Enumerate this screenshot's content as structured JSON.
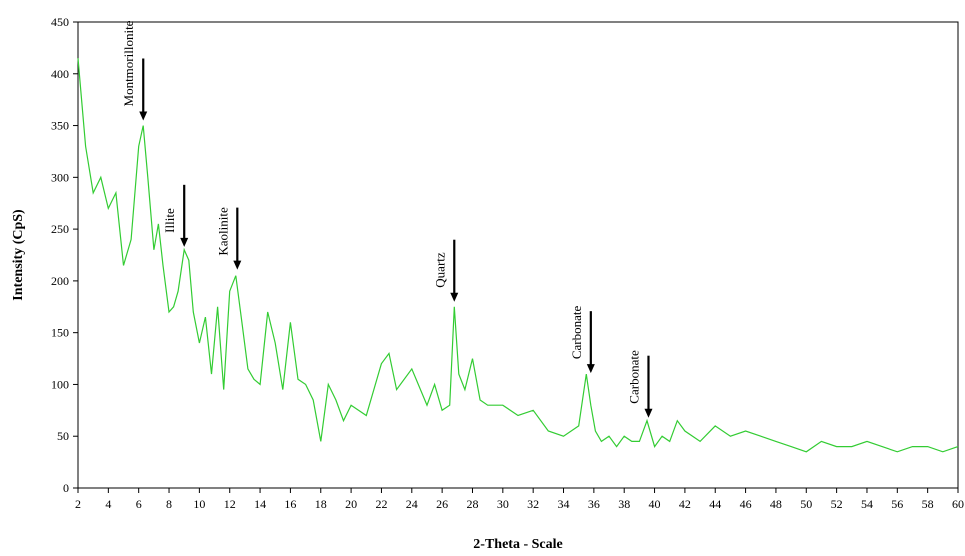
{
  "chart_data": {
    "type": "line",
    "xlabel": "2-Theta - Scale",
    "ylabel": "Intensity (CpS)",
    "xlim": [
      2,
      60
    ],
    "ylim": [
      0,
      450
    ],
    "xticks": [
      2,
      4,
      6,
      8,
      10,
      12,
      14,
      16,
      18,
      20,
      22,
      24,
      26,
      28,
      30,
      32,
      34,
      36,
      38,
      40,
      42,
      44,
      46,
      48,
      50,
      52,
      54,
      56,
      58,
      60
    ],
    "yticks": [
      0,
      50,
      100,
      150,
      200,
      250,
      300,
      350,
      400,
      450
    ],
    "grid": false,
    "series": [
      {
        "color": "#33cc33",
        "x": [
          2,
          2.5,
          3,
          3.5,
          4,
          4.5,
          5,
          5.5,
          6,
          6.3,
          6.6,
          7,
          7.3,
          7.6,
          8,
          8.3,
          8.6,
          9,
          9.3,
          9.6,
          10,
          10.4,
          10.8,
          11.2,
          11.6,
          12,
          12.4,
          12.8,
          13.2,
          13.6,
          14,
          14.5,
          15,
          15.5,
          16,
          16.5,
          17,
          17.5,
          18,
          18.5,
          19,
          19.5,
          20,
          21,
          22,
          22.5,
          23,
          24,
          25,
          25.5,
          26,
          26.5,
          26.8,
          27.1,
          27.5,
          28,
          28.5,
          29,
          30,
          31,
          32,
          33,
          34,
          35,
          35.5,
          35.8,
          36.1,
          36.5,
          37,
          37.5,
          38,
          38.5,
          39,
          39.5,
          40,
          40.5,
          41,
          41.5,
          42,
          43,
          44,
          45,
          46,
          47,
          48,
          49,
          50,
          51,
          52,
          53,
          54,
          55,
          56,
          57,
          58,
          59,
          60
        ],
        "values": [
          415,
          330,
          285,
          300,
          270,
          285,
          215,
          240,
          330,
          350,
          300,
          230,
          255,
          215,
          170,
          175,
          190,
          230,
          220,
          170,
          140,
          165,
          110,
          175,
          95,
          190,
          205,
          160,
          115,
          105,
          100,
          170,
          140,
          95,
          160,
          105,
          100,
          85,
          45,
          100,
          85,
          65,
          80,
          70,
          120,
          130,
          95,
          115,
          80,
          100,
          75,
          80,
          175,
          110,
          95,
          125,
          85,
          80,
          80,
          70,
          75,
          55,
          50,
          60,
          110,
          80,
          55,
          45,
          50,
          40,
          50,
          45,
          45,
          65,
          40,
          50,
          45,
          65,
          55,
          45,
          60,
          50,
          55,
          50,
          45,
          40,
          35,
          45,
          40,
          40,
          45,
          40,
          35,
          40,
          40,
          35,
          40
        ]
      }
    ],
    "annotations": [
      {
        "label": "Montmorillonite",
        "x": 6.3,
        "y": 352
      },
      {
        "label": "Illite",
        "x": 9.0,
        "y": 230
      },
      {
        "label": "Kaolinite",
        "x": 12.5,
        "y": 208
      },
      {
        "label": "Quartz",
        "x": 26.8,
        "y": 177
      },
      {
        "label": "Carbonate",
        "x": 35.8,
        "y": 108
      },
      {
        "label": "Carbonate",
        "x": 39.6,
        "y": 65
      }
    ]
  }
}
